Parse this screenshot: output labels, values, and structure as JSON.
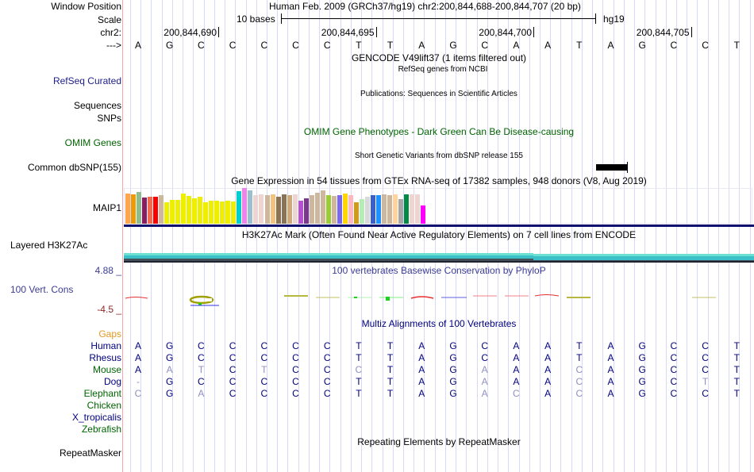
{
  "header": {
    "window_position_label": "Window Position",
    "scale_label": "Scale",
    "chrom_label": "chr2:",
    "strand_label": "--->",
    "assembly_title": "Human Feb. 2009 (GRCh37/hg19)   chr2:200,844,688-200,844,707 (20 bp)",
    "scale_text": "10 bases",
    "scale_db": "hg19",
    "positions": [
      "200,844,690",
      "200,844,695",
      "200,844,700",
      "200,844,705"
    ]
  },
  "sequence": [
    "A",
    "G",
    "C",
    "C",
    "C",
    "C",
    "C",
    "T",
    "T",
    "A",
    "G",
    "C",
    "A",
    "A",
    "T",
    "A",
    "G",
    "C",
    "C",
    "T"
  ],
  "tracks": {
    "gencode_title": "GENCODE V49lift37 (1 items filtered out)",
    "refseq_sub": "RefSeq genes from NCBI",
    "refseq_label": "RefSeq Curated",
    "publications_title": "Publications: Sequences in Scientific Articles",
    "sequences_label": "Sequences",
    "snps_label": "SNPs",
    "omim_title": "OMIM Gene Phenotypes - Dark Green Can Be Disease-causing",
    "omim_label": "OMIM Genes",
    "dbsnp_title": "Short Genetic Variants from dbSNP release 155",
    "dbsnp_label": "Common dbSNP(155)",
    "gtex_title": "Gene Expression in 54 tissues from GTEx RNA-seq of 17382 samples, 948 donors (V8, Aug 2019)",
    "gtex_gene_label": "MAIP1",
    "h3k27_title": "H3K27Ac Mark (Often Found Near Active Regulatory Elements) on 7 cell lines from ENCODE",
    "h3k27_label": "Layered H3K27Ac",
    "phylop_title": "100 vertebrates Basewise Conservation by PhyloP",
    "phylop_label": "100 Vert. Cons",
    "phylop_max": "4.88 _",
    "phylop_min": "-4.5 _",
    "multiz_title": "Multiz Alignments of 100 Vertebrates",
    "gaps_label": "Gaps",
    "repeat_title": "Repeating Elements by RepeatMasker",
    "repeat_label": "RepeatMasker"
  },
  "gtex_bars": {
    "relative_heights": [
      0.84,
      0.82,
      0.88,
      0.74,
      0.76,
      0.76,
      0.81,
      0.6,
      0.66,
      0.66,
      0.84,
      0.78,
      0.72,
      0.76,
      0.6,
      0.64,
      0.64,
      0.62,
      0.64,
      0.62,
      0.9,
      1.0,
      0.94,
      0.8,
      0.82,
      0.8,
      0.83,
      0.76,
      0.83,
      0.79,
      0.82,
      0.64,
      0.72,
      0.81,
      0.87,
      0.93,
      0.79,
      0.77,
      0.79,
      0.84,
      0.79,
      0.6,
      0.7,
      0.76,
      0.81,
      0.81,
      0.83,
      0.79,
      0.82,
      0.69,
      0.83,
      0.82,
      0.82,
      0.5
    ],
    "colors": [
      "#FFA54F",
      "#EE9A00",
      "#8FBC8F",
      "#8B1C62",
      "#EE6A50",
      "#FF0000",
      "#CDB79E",
      "#EEEE00",
      "#EEEE00",
      "#EEEE00",
      "#EEEE00",
      "#EEEE00",
      "#EEEE00",
      "#EEEE00",
      "#EEEE00",
      "#EEEE00",
      "#EEEE00",
      "#EEEE00",
      "#EEEE00",
      "#EEEE00",
      "#00CDCD",
      "#EE82EE",
      "#9AC0CD",
      "#EED5D2",
      "#EED5D2",
      "#CDB79E",
      "#F4C27F",
      "#8B7355",
      "#8B7355",
      "#CDAA7D",
      "#EED5D2",
      "#B452CD",
      "#7A378B",
      "#CDB79E",
      "#CDB79E",
      "#CDB79E",
      "#9ACD32",
      "#CDB79E",
      "#7B68EE",
      "#FFD700",
      "#FFB6C1",
      "#CD9B1D",
      "#B4EEB4",
      "#D9D9D9",
      "#3A5FCD",
      "#1E90FF",
      "#CDB79E",
      "#CDB79E",
      "#FFD39B",
      "#A6A6A6",
      "#008B45",
      "#EED5D2",
      "#EED5D2",
      "#FF00FF"
    ]
  },
  "alignment": {
    "species": [
      {
        "name": "Human",
        "color": "#000080"
      },
      {
        "name": "Rhesus",
        "color": "#000080"
      },
      {
        "name": "Mouse",
        "color": "#006400"
      },
      {
        "name": "Dog",
        "color": "#000080"
      },
      {
        "name": "Elephant",
        "color": "#006400"
      },
      {
        "name": "Chicken",
        "color": "#006400"
      },
      {
        "name": "X_tropicalis",
        "color": "#000080"
      },
      {
        "name": "Zebrafish",
        "color": "#006400"
      }
    ],
    "rows": [
      "AGCCCCCTTAGCAATAGCCT",
      "AGCCCCCTTAGCAATAGCCT",
      "AATCTCCCTAGAAACAGCCT",
      "-GCCCCCTTAGAAACAGCTT",
      "CGACCCCTTAGACACAGCCT"
    ]
  },
  "colors": {
    "label_blue": "#000080",
    "phylop_blue": "#3c3c96",
    "omim_green": "#006400",
    "gaps_orange": "#e6961e",
    "mismatch_gray": "#9090c0",
    "h3k27_teal": "#3cc0c8"
  }
}
